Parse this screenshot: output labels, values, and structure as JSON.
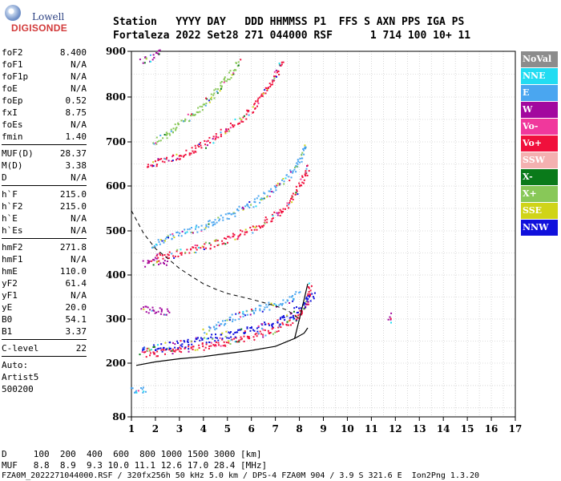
{
  "logo": {
    "top": "Lowell",
    "bottom": "DIGISONDE"
  },
  "header": {
    "line1": "Station   YYYY DAY   DDD HHMMSS P1  FFS S AXN PPS IGA PS",
    "line2": "Fortaleza 2022 Set28 271 044000 RSF      1 714 100 10+ 11"
  },
  "params": [
    {
      "key": "foF2",
      "value": "8.400"
    },
    {
      "key": "foF1",
      "value": "N/A"
    },
    {
      "key": "foF1p",
      "value": "N/A"
    },
    {
      "key": "foE",
      "value": "N/A"
    },
    {
      "key": "foEp",
      "value": "0.52"
    },
    {
      "key": "fxI",
      "value": "8.75"
    },
    {
      "key": "foEs",
      "value": "N/A"
    },
    {
      "key": "fmin",
      "value": "1.40"
    },
    {
      "key": "MUF(D)",
      "value": "28.37"
    },
    {
      "key": "M(D)",
      "value": "3.38"
    },
    {
      "key": "D",
      "value": "N/A"
    },
    {
      "key": "h`F",
      "value": "215.0"
    },
    {
      "key": "h`F2",
      "value": "215.0"
    },
    {
      "key": "h`E",
      "value": "N/A"
    },
    {
      "key": "h`Es",
      "value": "N/A"
    },
    {
      "key": "hmF2",
      "value": "271.8"
    },
    {
      "key": "hmF1",
      "value": "N/A"
    },
    {
      "key": "hmE",
      "value": "110.0"
    },
    {
      "key": "yF2",
      "value": "61.4"
    },
    {
      "key": "yF1",
      "value": "N/A"
    },
    {
      "key": "yE",
      "value": "20.0"
    },
    {
      "key": "B0",
      "value": "54.1"
    },
    {
      "key": "B1",
      "value": "3.37"
    },
    {
      "key": "C-level",
      "value": "22"
    }
  ],
  "auto": {
    "line1": "Auto:",
    "line2": "Artist5",
    "line3": "500200"
  },
  "legend": [
    {
      "label": "NoVal",
      "color": "#8c8c8c"
    },
    {
      "label": "NNE",
      "color": "#22dcf2"
    },
    {
      "label": "E",
      "color": "#4aa6f0"
    },
    {
      "label": "W",
      "color": "#a2089e"
    },
    {
      "label": "Vo-",
      "color": "#f0389c"
    },
    {
      "label": "Vo+",
      "color": "#f0103c"
    },
    {
      "label": "SSW",
      "color": "#f4b0b0"
    },
    {
      "label": "X-",
      "color": "#0a7a1a"
    },
    {
      "label": "X+",
      "color": "#88c858"
    },
    {
      "label": "SSE",
      "color": "#d0d418"
    },
    {
      "label": "NNW",
      "color": "#1010dc"
    }
  ],
  "bottom": {
    "d_row": "D     100  200  400  600  800 1000 1500 3000 [km]",
    "muf_row": "MUF   8.8  8.9  9.3 10.0 11.1 12.6 17.0 28.4 [MHz]",
    "footer": "FZA0M_2022271044000.RSF / 320fx256h 50 kHz 5.0 km / DPS-4 FZA0M 904 / 3.9 S 321.6 E  Ion2Png 1.3.20"
  },
  "chart_data": {
    "type": "scatter",
    "xlim": [
      1,
      17
    ],
    "ylim": [
      80,
      900
    ],
    "x_ticks": [
      1,
      2,
      3,
      4,
      5,
      6,
      7,
      8,
      9,
      10,
      11,
      12,
      13,
      14,
      15,
      16,
      17
    ],
    "y_ticks": [
      80,
      200,
      300,
      400,
      500,
      600,
      700,
      800,
      900
    ],
    "grid": true,
    "profile_solid": [
      [
        1.2,
        195
      ],
      [
        2.0,
        203
      ],
      [
        3.0,
        210
      ],
      [
        4.0,
        215
      ],
      [
        5.0,
        222
      ],
      [
        6.0,
        229
      ],
      [
        7.0,
        238
      ],
      [
        7.8,
        256
      ],
      [
        8.2,
        268
      ],
      [
        8.35,
        280
      ]
    ],
    "profile_solid_upper": [
      [
        7.8,
        256
      ],
      [
        8.0,
        300
      ],
      [
        8.2,
        345
      ],
      [
        8.35,
        380
      ]
    ],
    "profile_dashed": [
      [
        1.0,
        545
      ],
      [
        1.5,
        495
      ],
      [
        2.0,
        460
      ],
      [
        2.5,
        438
      ],
      [
        3.0,
        415
      ],
      [
        3.5,
        397
      ],
      [
        4.0,
        380
      ],
      [
        4.5,
        368
      ],
      [
        5.0,
        358
      ],
      [
        6.0,
        345
      ],
      [
        7.0,
        330
      ],
      [
        7.5,
        320
      ],
      [
        8.0,
        300
      ]
    ],
    "traces": [
      {
        "color": "#f0103c",
        "points": [
          [
            1.4,
            222
          ],
          [
            2.0,
            225
          ],
          [
            3.0,
            232
          ],
          [
            4.0,
            240
          ],
          [
            5.0,
            250
          ],
          [
            6.0,
            262
          ],
          [
            7.0,
            278
          ],
          [
            7.5,
            290
          ],
          [
            8.0,
            312
          ],
          [
            8.3,
            340
          ],
          [
            8.45,
            380
          ]
        ]
      },
      {
        "color": "#1010dc",
        "points": [
          [
            1.4,
            235
          ],
          [
            2.0,
            238
          ],
          [
            3.0,
            245
          ],
          [
            4.0,
            255
          ],
          [
            5.0,
            266
          ],
          [
            6.0,
            278
          ],
          [
            7.0,
            295
          ],
          [
            7.6,
            310
          ],
          [
            8.1,
            330
          ],
          [
            8.6,
            360
          ]
        ]
      },
      {
        "color": "#4aa6f0",
        "points": [
          [
            4.0,
            275
          ],
          [
            5.0,
            300
          ],
          [
            6.0,
            320
          ],
          [
            7.0,
            335
          ],
          [
            7.5,
            345
          ],
          [
            8.0,
            360
          ]
        ]
      },
      {
        "color": "#f0103c",
        "points": [
          [
            1.9,
            440
          ],
          [
            2.5,
            445
          ],
          [
            3.0,
            452
          ],
          [
            4.0,
            465
          ],
          [
            5.0,
            482
          ],
          [
            6.0,
            505
          ],
          [
            7.0,
            535
          ],
          [
            7.5,
            560
          ],
          [
            8.0,
            600
          ],
          [
            8.35,
            650
          ]
        ]
      },
      {
        "color": "#4aa6f0",
        "points": [
          [
            1.8,
            470
          ],
          [
            3.0,
            495
          ],
          [
            4.0,
            512
          ],
          [
            5.0,
            535
          ],
          [
            6.0,
            560
          ],
          [
            7.0,
            595
          ],
          [
            7.8,
            640
          ],
          [
            8.3,
            700
          ]
        ]
      },
      {
        "color": "#f0103c",
        "points": [
          [
            1.6,
            650
          ],
          [
            2.0,
            655
          ],
          [
            3.0,
            670
          ],
          [
            4.0,
            695
          ],
          [
            5.0,
            730
          ],
          [
            6.0,
            775
          ],
          [
            6.8,
            830
          ],
          [
            7.3,
            880
          ]
        ]
      },
      {
        "color": "#88c858",
        "points": [
          [
            1.9,
            700
          ],
          [
            2.5,
            720
          ],
          [
            3.5,
            760
          ],
          [
            4.5,
            810
          ],
          [
            5.5,
            880
          ]
        ]
      },
      {
        "color": "#a2089e",
        "points": [
          [
            1.4,
            878
          ],
          [
            1.8,
            888
          ],
          [
            2.2,
            900
          ]
        ]
      },
      {
        "color": "#a2089e",
        "points": [
          [
            1.4,
            325
          ],
          [
            1.8,
            322
          ],
          [
            2.2,
            320
          ],
          [
            2.6,
            318
          ]
        ]
      },
      {
        "color": "#a2089e",
        "points": [
          [
            1.5,
            428
          ],
          [
            2.0,
            430
          ],
          [
            2.5,
            428
          ]
        ]
      },
      {
        "color": "#4aa6f0",
        "points": [
          [
            1.0,
            140
          ],
          [
            1.3,
            142
          ],
          [
            1.6,
            145
          ]
        ]
      },
      {
        "color": "#a2089e",
        "points": [
          [
            11.75,
            300
          ],
          [
            11.75,
            310
          ]
        ]
      }
    ]
  }
}
